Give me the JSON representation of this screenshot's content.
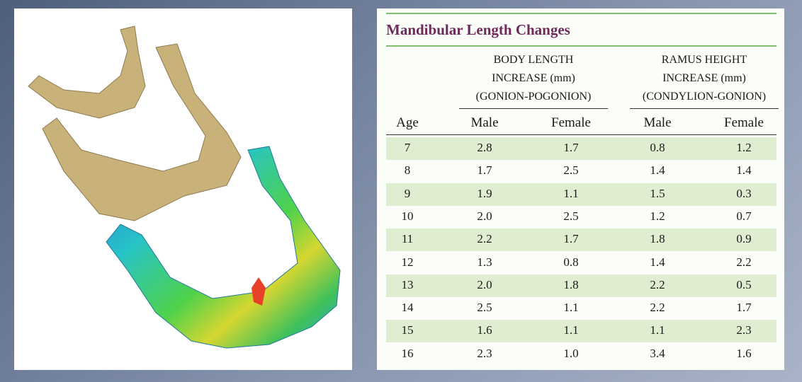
{
  "table": {
    "title": "Mandibular Length Changes",
    "groups": [
      {
        "lines": [
          "BODY LENGTH",
          "INCREASE (mm)",
          "(GONION-POGONION)"
        ]
      },
      {
        "lines": [
          "RAMUS HEIGHT",
          "INCREASE (mm)",
          "(CONDYLION-GONION)"
        ]
      }
    ],
    "columns": [
      "Age",
      "Male",
      "Female",
      "Male",
      "Female"
    ],
    "rows": [
      [
        "7",
        "2.8",
        "1.7",
        "0.8",
        "1.2"
      ],
      [
        "8",
        "1.7",
        "2.5",
        "1.4",
        "1.4"
      ],
      [
        "9",
        "1.9",
        "1.1",
        "1.5",
        "0.3"
      ],
      [
        "10",
        "2.0",
        "2.5",
        "1.2",
        "0.7"
      ],
      [
        "11",
        "2.2",
        "1.7",
        "1.8",
        "0.9"
      ],
      [
        "12",
        "1.3",
        "0.8",
        "1.4",
        "2.2"
      ],
      [
        "13",
        "2.0",
        "1.8",
        "2.2",
        "0.5"
      ],
      [
        "14",
        "2.5",
        "1.1",
        "2.2",
        "1.7"
      ],
      [
        "15",
        "1.6",
        "1.1",
        "1.1",
        "2.3"
      ],
      [
        "16",
        "2.3",
        "1.0",
        "3.4",
        "1.6"
      ]
    ]
  }
}
